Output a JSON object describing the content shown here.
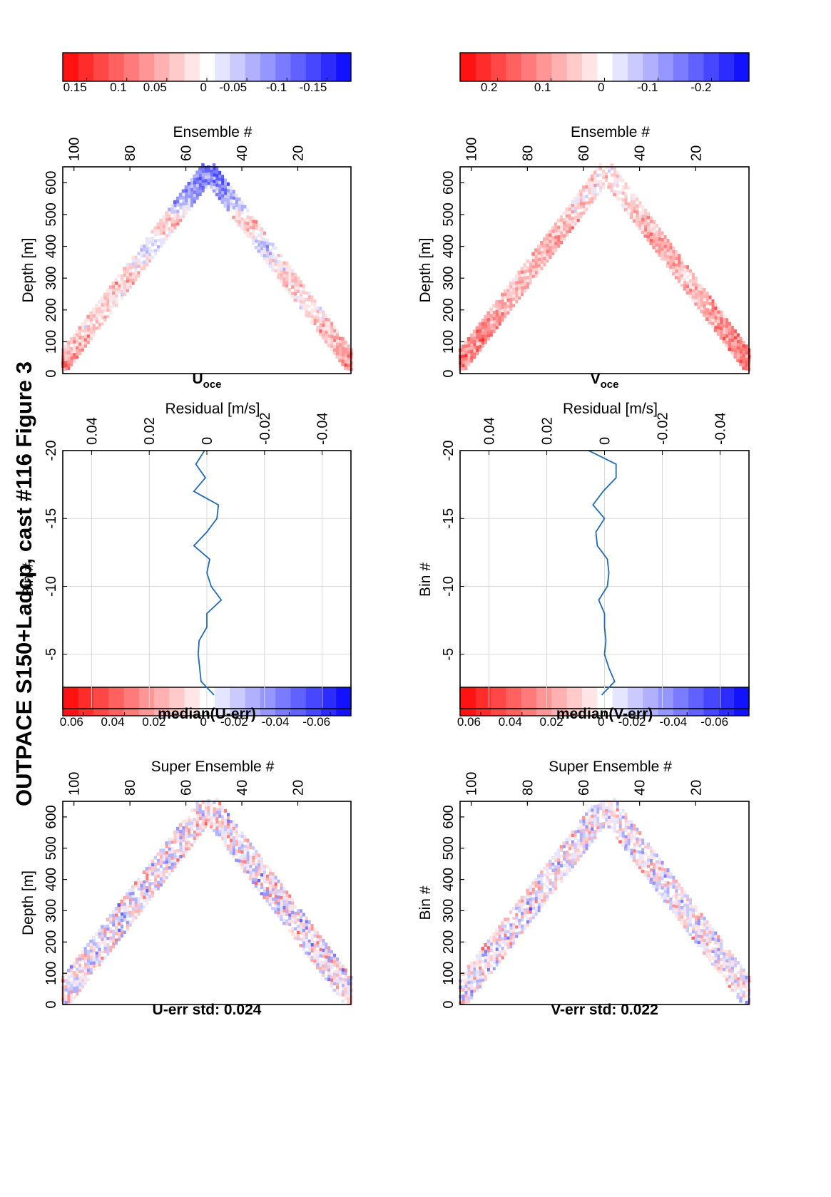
{
  "figure_title": "OUTPACE S150+Ladcp, cast #116  Figure 3",
  "colors": {
    "line": "#1f6bb5",
    "grid": "#d9d9d9",
    "neg_extreme": "#1111ff",
    "pos_extreme": "#ff1111"
  },
  "panels": {
    "u_err": {
      "title": "U-err std: 0.024",
      "xlabel": "Super Ensemble #",
      "ylabel": "Depth [m]"
    },
    "v_err": {
      "title": "V-err std: 0.022",
      "xlabel": "Super Ensemble #",
      "ylabel": "Bin #"
    },
    "med_u": {
      "title": "median(U-err)",
      "xlabel": "Residual [m/s]",
      "ylabel": "Bin #"
    },
    "med_v": {
      "title": "median(V-err)",
      "xlabel": "Residual [m/s]",
      "ylabel": "Bin #"
    },
    "u_oce": {
      "title_main": "U",
      "title_sub": "oce",
      "xlabel": "Ensemble #",
      "ylabel": "Depth [m]"
    },
    "v_oce": {
      "title_main": "V",
      "title_sub": "oce",
      "xlabel": "Ensemble #",
      "ylabel": "Depth [m]"
    }
  },
  "chart_data": [
    {
      "id": "u_err",
      "type": "heatmap",
      "title": "U-err std: 0.024",
      "xlabel": "Super Ensemble #",
      "ylabel": "Depth [m]",
      "xlim": [
        1,
        104
      ],
      "ylim": [
        0,
        650
      ],
      "xticks": [
        20,
        40,
        60,
        80,
        100
      ],
      "yticks": [
        0,
        100,
        200,
        300,
        400,
        500,
        600
      ],
      "clim": [
        -0.07,
        0.07
      ],
      "colorbar_ticks": [
        "0.06",
        "0.04",
        "0.02",
        "0",
        "-0.02",
        "-0.04",
        "-0.06"
      ],
      "colorbar_values": [
        0.06,
        0.04,
        0.02,
        0,
        -0.02,
        -0.04,
        -0.06
      ],
      "profile": {
        "start_depth": 30,
        "max_depth": 635,
        "min_depth": 30,
        "turn_x": 52
      },
      "amplitude": 0.024
    },
    {
      "id": "med_u",
      "type": "line",
      "title": "median(U-err)",
      "xlabel": "Residual [m/s]",
      "ylabel": "Bin #",
      "xlim": [
        -0.05,
        0.05
      ],
      "ylim": [
        -20,
        -1
      ],
      "xticks": [
        "-0.04",
        "-0.02",
        "0",
        "0.02",
        "0.04"
      ],
      "xtick_values": [
        -0.04,
        -0.02,
        0,
        0.02,
        0.04
      ],
      "yticks": [
        "-5",
        "-10",
        "-15",
        "-20"
      ],
      "ytick_values": [
        -5,
        -10,
        -15,
        -20
      ],
      "y": [
        -2,
        -3,
        -4,
        -5,
        -6,
        -7,
        -8,
        -9,
        -10,
        -11,
        -12,
        -13,
        -14,
        -15,
        -16,
        -17,
        -18,
        -19,
        -20
      ],
      "x": [
        -0.0025,
        0.002,
        0.0025,
        0.003,
        0.0027,
        0.0,
        0.0,
        -0.005,
        -0.0015,
        0.0,
        -0.001,
        0.0045,
        0.0,
        -0.0035,
        -0.004,
        0.0045,
        0.0005,
        0.0038,
        0.0008
      ]
    },
    {
      "id": "u_oce",
      "type": "heatmap",
      "title": "U oce",
      "xlabel": "Ensemble #",
      "ylabel": "Depth [m]",
      "xlim": [
        1,
        104
      ],
      "ylim": [
        0,
        650
      ],
      "xticks": [
        20,
        40,
        60,
        80,
        100
      ],
      "yticks": [
        0,
        100,
        200,
        300,
        400,
        500,
        600
      ],
      "clim": [
        -0.18,
        0.18
      ],
      "colorbar_ticks": [
        "0.15",
        "0.1",
        "0.05",
        "0",
        "-0.05",
        "-0.1",
        "-0.15"
      ],
      "colorbar_values": [
        0.15,
        0.1,
        0.05,
        0,
        -0.05,
        -0.1,
        -0.15
      ],
      "profile": {
        "start_depth": 30,
        "max_depth": 635,
        "min_depth": 30,
        "turn_x": 52
      },
      "mean_by_depth": [
        [
          0,
          0.12
        ],
        [
          100,
          0.06
        ],
        [
          200,
          0.02
        ],
        [
          280,
          0.05
        ],
        [
          400,
          -0.04
        ],
        [
          470,
          0.07
        ],
        [
          520,
          -0.05
        ],
        [
          640,
          -0.12
        ]
      ]
    },
    {
      "id": "v_err",
      "type": "heatmap",
      "title": "V-err std: 0.022",
      "xlabel": "Super Ensemble #",
      "ylabel": "Bin #",
      "xlim": [
        1,
        104
      ],
      "ylim": [
        0,
        650
      ],
      "xticks": [
        20,
        40,
        60,
        80,
        100
      ],
      "yticks": [
        0,
        100,
        200,
        300,
        400,
        500,
        600
      ],
      "clim": [
        -0.07,
        0.07
      ],
      "colorbar_ticks": [
        "0.06",
        "0.04",
        "0.02",
        "0",
        "-0.02",
        "-0.04",
        "-0.06"
      ],
      "colorbar_values": [
        0.06,
        0.04,
        0.02,
        0,
        -0.02,
        -0.04,
        -0.06
      ],
      "profile": {
        "start_depth": 30,
        "max_depth": 635,
        "min_depth": 30,
        "turn_x": 52
      },
      "amplitude": 0.022
    },
    {
      "id": "med_v",
      "type": "line",
      "title": "median(V-err)",
      "xlabel": "Residual [m/s]",
      "ylabel": "Bin #",
      "xlim": [
        -0.05,
        0.05
      ],
      "ylim": [
        -20,
        -1
      ],
      "xticks": [
        "-0.04",
        "-0.02",
        "0",
        "0.02",
        "0.04"
      ],
      "xtick_values": [
        -0.04,
        -0.02,
        0,
        0.02,
        0.04
      ],
      "yticks": [
        "-5",
        "-10",
        "-15",
        "-20"
      ],
      "ytick_values": [
        -5,
        -10,
        -15,
        -20
      ],
      "y": [
        -2,
        -3,
        -4,
        -5,
        -6,
        -7,
        -8,
        -9,
        -10,
        -11,
        -12,
        -13,
        -14,
        -15,
        -16,
        -17,
        -18,
        -19,
        -20
      ],
      "x": [
        0.001,
        -0.0035,
        -0.0015,
        0.0,
        -0.0005,
        0.0,
        0.0,
        0.002,
        -0.001,
        -0.0015,
        -0.001,
        0.0025,
        0.003,
        0.0,
        0.004,
        0.0005,
        -0.004,
        -0.004,
        0.0055
      ]
    },
    {
      "id": "v_oce",
      "type": "heatmap",
      "title": "V oce",
      "xlabel": "Ensemble #",
      "ylabel": "Depth [m]",
      "xlim": [
        1,
        104
      ],
      "ylim": [
        0,
        650
      ],
      "xticks": [
        20,
        40,
        60,
        80,
        100
      ],
      "yticks": [
        0,
        100,
        200,
        300,
        400,
        500,
        600
      ],
      "clim": [
        -0.27,
        0.27
      ],
      "colorbar_ticks": [
        "0.2",
        "0.1",
        "0",
        "-0.1",
        "-0.2"
      ],
      "colorbar_values": [
        0.2,
        0.1,
        0,
        -0.1,
        -0.2
      ],
      "profile": {
        "start_depth": 30,
        "max_depth": 635,
        "min_depth": 30,
        "turn_x": 52
      },
      "mean_by_depth": [
        [
          0,
          0.18
        ],
        [
          120,
          0.16
        ],
        [
          200,
          0.1
        ],
        [
          300,
          0.08
        ],
        [
          400,
          0.12
        ],
        [
          470,
          0.09
        ],
        [
          560,
          0.03
        ],
        [
          640,
          0.04
        ]
      ]
    }
  ]
}
